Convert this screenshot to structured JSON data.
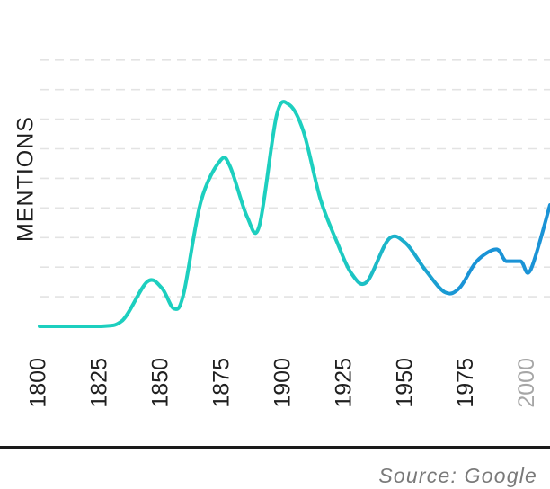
{
  "chart_data": {
    "type": "line",
    "title": "",
    "xlabel": "",
    "ylabel": "MENTIONS",
    "xlim": [
      1800,
      2009
    ],
    "ylim": [
      0,
      9.6
    ],
    "grid": true,
    "x_ticks": [
      "1800",
      "1825",
      "1850",
      "1875",
      "1900",
      "1925",
      "1950",
      "1975",
      "2000"
    ],
    "muted_ticks": [
      "2000"
    ],
    "series": [
      {
        "x": [
          1800,
          1825,
          1834,
          1844,
          1850,
          1855,
          1859,
          1866,
          1874,
          1878,
          1885,
          1890,
          1897,
          1902,
          1908,
          1915,
          1922,
          1928,
          1934,
          1943,
          1950,
          1958,
          1966,
          1972,
          1979,
          1987,
          1991,
          1997,
          2001,
          2009
        ],
        "y": [
          0,
          0,
          0.2,
          1.5,
          1.3,
          0.6,
          1.1,
          4.2,
          5.6,
          5.4,
          3.7,
          3.4,
          7.1,
          7.5,
          6.6,
          4.3,
          2.8,
          1.75,
          1.5,
          2.95,
          2.8,
          1.9,
          1.15,
          1.3,
          2.2,
          2.6,
          2.2,
          2.2,
          1.9,
          4.1
        ]
      }
    ],
    "colors": {
      "line_start": "#1dcfbf",
      "line_end": "#1a93d6",
      "grid": "#e3e3e3"
    }
  },
  "footer": {
    "source": "Source: Google"
  }
}
